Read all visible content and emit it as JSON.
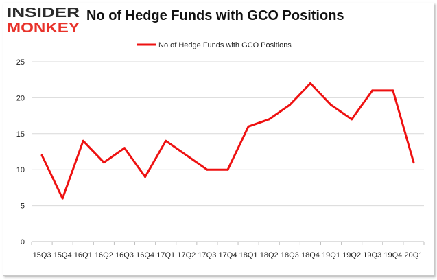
{
  "logo": {
    "line1": "INSIDER",
    "line2": "MONKEY"
  },
  "chart_data": {
    "type": "line",
    "title": "No of Hedge Funds with GCO Positions",
    "xlabel": "",
    "ylabel": "",
    "categories": [
      "15Q3",
      "15Q4",
      "16Q1",
      "16Q2",
      "16Q3",
      "16Q4",
      "17Q1",
      "17Q2",
      "17Q3",
      "17Q4",
      "18Q1",
      "18Q2",
      "18Q3",
      "18Q4",
      "19Q1",
      "19Q2",
      "19Q3",
      "19Q4",
      "20Q1"
    ],
    "series": [
      {
        "name": "No of Hedge Funds with GCO Positions",
        "values": [
          12,
          6,
          14,
          11,
          13,
          9,
          14,
          12,
          10,
          10,
          16,
          17,
          19,
          22,
          19,
          17,
          21,
          21,
          11
        ]
      }
    ],
    "ylim": [
      0,
      25
    ],
    "yticks": [
      0,
      5,
      10,
      15,
      20,
      25
    ],
    "grid": true,
    "legend": "top-center",
    "colors": {
      "line": "#ee1111",
      "grid": "#d9d9d9",
      "axis": "#bfbfbf",
      "logo_dark": "#2b2b2b",
      "logo_red": "#e8322a"
    }
  }
}
